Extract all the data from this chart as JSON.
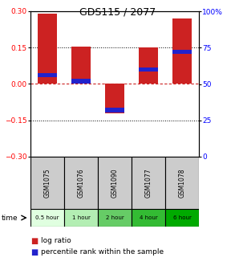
{
  "title": "GDS115 / 2077",
  "samples": [
    "GSM1075",
    "GSM1076",
    "GSM1090",
    "GSM1077",
    "GSM1078"
  ],
  "time_labels": [
    "0.5 hour",
    "1 hour",
    "2 hour",
    "4 hour",
    "6 hour"
  ],
  "time_colors": [
    "#e0ffe0",
    "#b3eeb3",
    "#66cc66",
    "#33bb33",
    "#00aa00"
  ],
  "log_ratios": [
    0.29,
    0.155,
    -0.12,
    0.15,
    0.27
  ],
  "percentile_ranks": [
    0.56,
    0.52,
    0.32,
    0.6,
    0.72
  ],
  "ylim": [
    -0.3,
    0.3
  ],
  "yticks_left": [
    -0.3,
    -0.15,
    0.0,
    0.15,
    0.3
  ],
  "yticks_right": [
    0,
    25,
    50,
    75,
    100
  ],
  "bar_color": "#cc2222",
  "pct_color": "#2222cc",
  "bar_width": 0.55,
  "background_color": "#ffffff",
  "dotted_color": "#000000",
  "zero_line_color": "#cc2222",
  "sample_bg": "#cccccc",
  "legend_fontsize": 6.5,
  "title_fontsize": 9
}
